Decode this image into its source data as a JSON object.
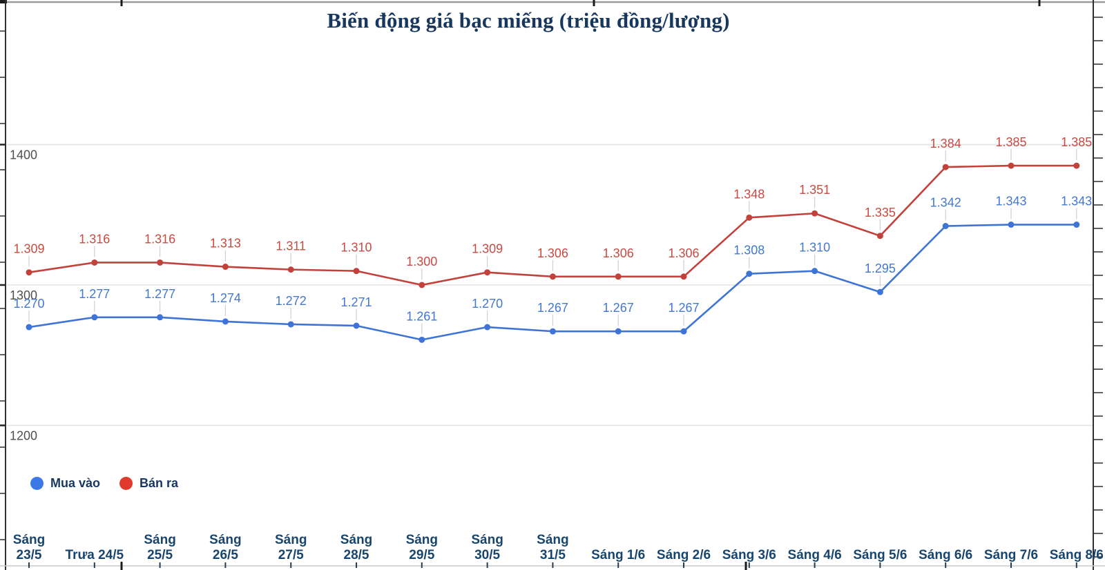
{
  "chart_data": {
    "type": "line",
    "title": "Biến động giá bạc miếng (triệu đồng/lượng)",
    "categories": [
      [
        "Sáng",
        "23/5"
      ],
      [
        "Trưa 24/5"
      ],
      [
        "Sáng",
        "25/5"
      ],
      [
        "Sáng",
        "26/5"
      ],
      [
        "Sáng",
        "27/5"
      ],
      [
        "Sáng",
        "28/5"
      ],
      [
        "Sáng",
        "29/5"
      ],
      [
        "Sáng",
        "30/5"
      ],
      [
        "Sáng",
        "31/5"
      ],
      [
        "Sáng 1/6"
      ],
      [
        "Sáng 2/6"
      ],
      [
        "Sáng 3/6"
      ],
      [
        "Sáng 4/6"
      ],
      [
        "Sáng 5/6"
      ],
      [
        "Sáng 6/6"
      ],
      [
        "Sáng 7/6"
      ],
      [
        "Sáng 8/6"
      ]
    ],
    "series": [
      {
        "name": "Mua vào",
        "color": "#3E74D6",
        "label_color": "#4277D2",
        "legend_color": "#3C78E8",
        "values": [
          1270,
          1277,
          1277,
          1274,
          1272,
          1271,
          1261,
          1270,
          1267,
          1267,
          1267,
          1308,
          1310,
          1295,
          1342,
          1343,
          1343
        ],
        "labels": [
          "1.270",
          "1.277",
          "1.277",
          "1.274",
          "1.272",
          "1.271",
          "1.261",
          "1.270",
          "1.267",
          "1.267",
          "1.267",
          "1.308",
          "1.310",
          "1.295",
          "1.342",
          "1.343",
          "1.343"
        ]
      },
      {
        "name": "Bán ra",
        "color": "#C2423B",
        "label_color": "#C84A42",
        "legend_color": "#E03A2D",
        "values": [
          1309,
          1316,
          1316,
          1313,
          1311,
          1310,
          1300,
          1309,
          1306,
          1306,
          1306,
          1348,
          1351,
          1335,
          1384,
          1385,
          1385
        ],
        "labels": [
          "1.309",
          "1.316",
          "1.316",
          "1.313",
          "1.311",
          "1.310",
          "1.300",
          "1.309",
          "1.306",
          "1.306",
          "1.306",
          "1.348",
          "1.351",
          "1.335",
          "1.384",
          "1.385",
          "1.385"
        ]
      }
    ],
    "yticks": [
      1400,
      1300,
      1200
    ],
    "ylim": [
      1097,
      1503
    ],
    "grid": true,
    "legend_position": "bottom-left"
  },
  "legend": {
    "items": [
      {
        "label": "Mua vào"
      },
      {
        "label": "Bán ra"
      }
    ]
  },
  "colors": {
    "title": "#17375F",
    "x_labels": "#17456E",
    "y_labels": "#4E4E4E",
    "gridline": "#E3E3E3",
    "buy": "#3E74D6",
    "sell": "#C2423B"
  }
}
